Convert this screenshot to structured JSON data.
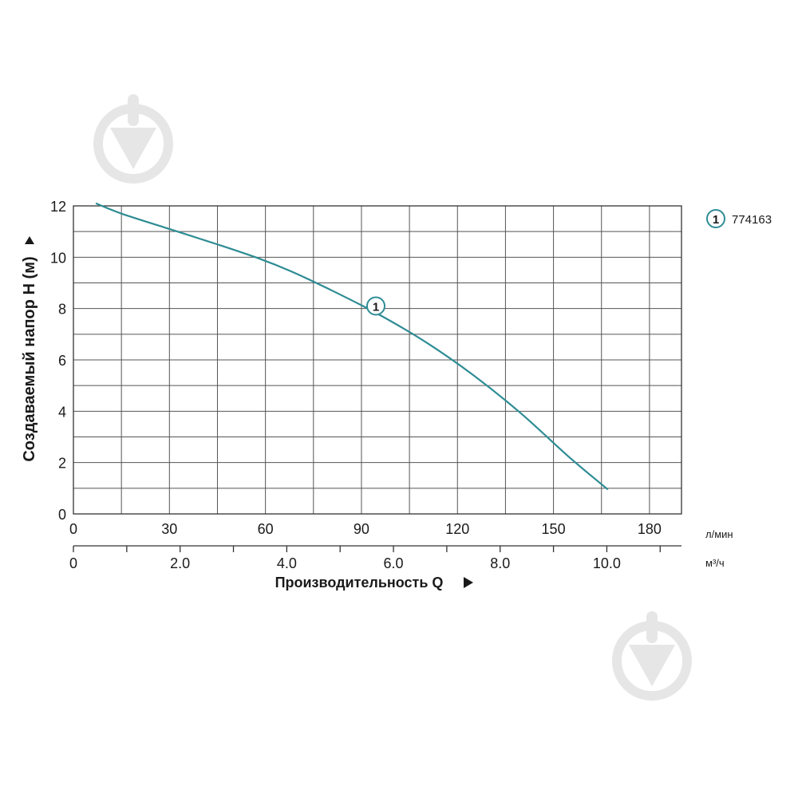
{
  "chart_data": {
    "type": "line",
    "title": "",
    "ylabel": "Создаваемый напор H (м)",
    "ylim": [
      0,
      12
    ],
    "yticks": [
      0,
      2,
      4,
      6,
      8,
      10,
      12
    ],
    "x_primary": {
      "unit": "л/мин",
      "ticks": [
        0,
        30,
        60,
        90,
        120,
        150,
        180
      ],
      "range": [
        0,
        190
      ]
    },
    "x_secondary": {
      "unit": "м³/ч",
      "ticks": [
        "0",
        "2.0",
        "4.0",
        "6.0",
        "8.0",
        "10.0"
      ],
      "values": [
        0,
        2,
        4,
        6,
        8,
        10
      ]
    },
    "xlabel": "Производительность Q",
    "grid": true,
    "legend_position": "top-right",
    "series": [
      {
        "name": "774163",
        "marker_label": "1",
        "color": "#2e8c94",
        "x": [
          7,
          15,
          30,
          45,
          58,
          68,
          80,
          95,
          110,
          125,
          140,
          155,
          167
        ],
        "y": [
          12.1,
          11.7,
          11.1,
          10.5,
          9.95,
          9.45,
          8.75,
          7.8,
          6.7,
          5.4,
          3.9,
          2.2,
          0.95
        ]
      }
    ]
  }
}
